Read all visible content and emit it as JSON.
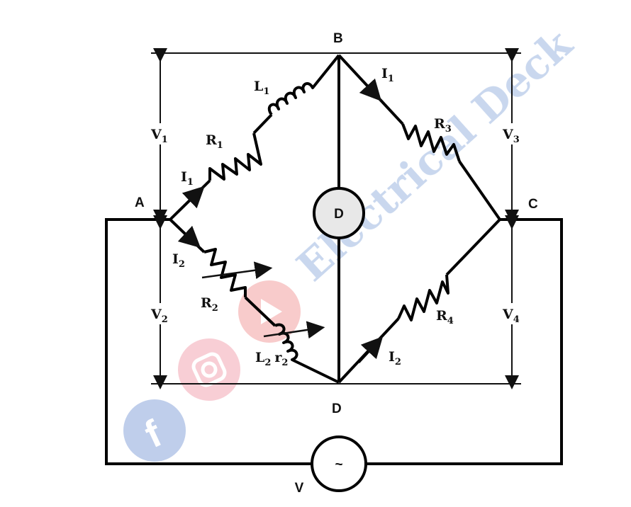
{
  "nodes": {
    "a": "A",
    "b": "B",
    "c": "C",
    "d_bottom": "D"
  },
  "detector": {
    "label": "D"
  },
  "source": {
    "symbol": "~",
    "label": "V"
  },
  "voltages": [
    {
      "main": "V",
      "sub": "1"
    },
    {
      "main": "V",
      "sub": "2"
    },
    {
      "main": "V",
      "sub": "3"
    },
    {
      "main": "V",
      "sub": "4"
    }
  ],
  "components": {
    "r1": {
      "main": "R",
      "sub": "1"
    },
    "l1": {
      "main": "L",
      "sub": "1"
    },
    "r2": {
      "main": "R",
      "sub": "2"
    },
    "l2": {
      "main": "L",
      "sub": "2"
    },
    "rr2": {
      "main": "r",
      "sub": "2"
    },
    "r3": {
      "main": "R",
      "sub": "3"
    },
    "r4": {
      "main": "R",
      "sub": "4"
    }
  },
  "currents": {
    "i1_ab": {
      "main": "I",
      "sub": "1"
    },
    "i2_ad": {
      "main": "I",
      "sub": "2"
    },
    "i1_bc": {
      "main": "I",
      "sub": "1"
    },
    "i2_dc": {
      "main": "I",
      "sub": "2"
    }
  },
  "watermark": {
    "text": "Electrical Deck",
    "color_blue": "#9db7e0",
    "color_gray": "#9a9a9a"
  },
  "colors": {
    "wire": "#000000",
    "meter_fill": "#e8e8e8"
  }
}
